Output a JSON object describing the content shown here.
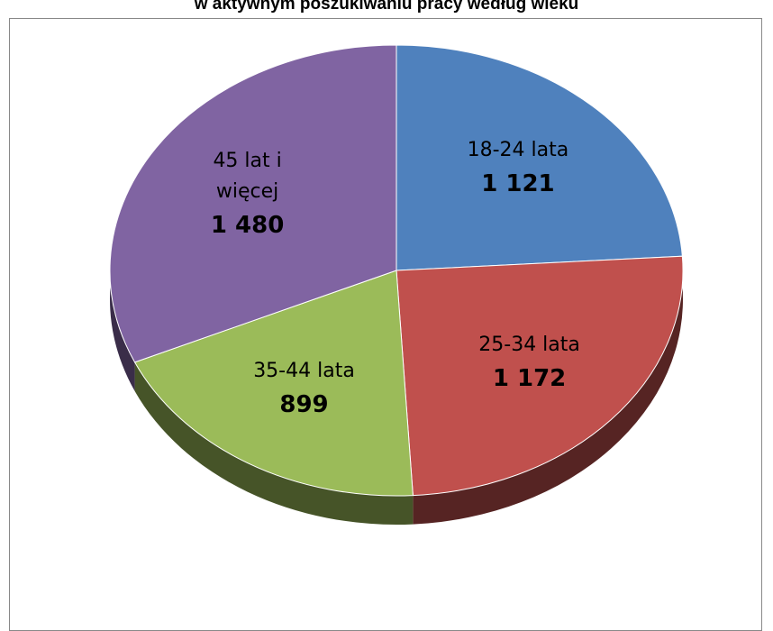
{
  "chart_data": {
    "type": "pie",
    "title": "w aktywnym poszukiwaniu pracy według wieku",
    "categories": [
      "18-24 lata",
      "25-34 lata",
      "35-44 lata",
      "45 lat i więcej"
    ],
    "values": [
      1121,
      1172,
      899,
      1480
    ],
    "value_labels": [
      "1 121",
      "1 172",
      "899",
      "1 480"
    ],
    "colors": [
      "#4f81bd",
      "#c0504d",
      "#9bbb59",
      "#8064a2"
    ]
  }
}
